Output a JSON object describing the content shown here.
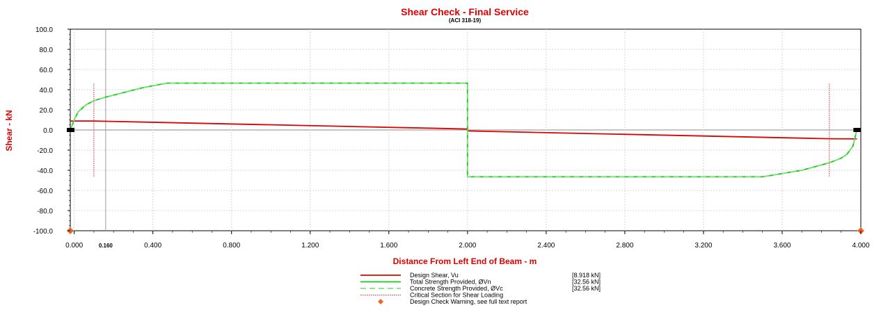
{
  "chart_data": {
    "type": "line",
    "title": "Shear Check - Final Service",
    "subtitle": "(ACI 318-19)",
    "xlabel": "Distance From Left End of Beam - m",
    "ylabel": "Shear - kN",
    "xlim": [
      -0.02,
      4.0
    ],
    "ylim": [
      -100,
      100
    ],
    "grid": true,
    "y_ticks": [
      100,
      80,
      60,
      40,
      20,
      0,
      -20,
      -40,
      -60,
      -80,
      -100
    ],
    "y_tick_labels": [
      "100.0",
      "80.0",
      "60.0",
      "40.0",
      "20.0",
      "0.0",
      "-20.0",
      "-40.0",
      "-60.0",
      "-80.0",
      "-100.0"
    ],
    "x_ticks": [
      0.0,
      0.4,
      0.8,
      1.2,
      1.6,
      2.0,
      2.4,
      2.8,
      3.2,
      3.6,
      4.0
    ],
    "x_tick_labels": [
      "0.000",
      "0.400",
      "0.800",
      "1.200",
      "1.600",
      "2.000",
      "2.400",
      "2.800",
      "3.200",
      "3.600",
      "4.000"
    ],
    "marked_x": {
      "value": 0.16,
      "label": "0.160"
    },
    "series": [
      {
        "name": "Design Shear, Vu",
        "legend_value": "[8.918  kN]",
        "color": "#dd0000",
        "style": "solid",
        "x": [
          -0.02,
          0.1,
          0.16,
          2.0,
          2.0,
          3.84,
          3.98
        ],
        "y": [
          8.9,
          8.9,
          8.6,
          1.0,
          -1.0,
          -8.7,
          -8.9
        ]
      },
      {
        "name": "Total Strength Provided, ØVn",
        "legend_value": "[32.56  kN]",
        "color": "#11cc11",
        "style": "solid",
        "x": [
          -0.02,
          0.0,
          0.02,
          0.06,
          0.1,
          0.16,
          0.25,
          0.35,
          0.47,
          2.0,
          2.0,
          3.5,
          3.7,
          3.84,
          3.9,
          3.93,
          3.96,
          3.98
        ],
        "y": [
          0,
          10,
          18,
          25,
          29,
          32.6,
          37,
          42,
          46.5,
          46.5,
          -46.5,
          -46.5,
          -40,
          -32.6,
          -28,
          -24,
          -16,
          0
        ]
      },
      {
        "name": "Concrete Strength Provided, ØVc",
        "legend_value": "[32.56  kN]",
        "color": "#88dd88",
        "style": "dashed",
        "x": [
          -0.02,
          0.0,
          0.02,
          0.06,
          0.1,
          0.16,
          0.25,
          0.35,
          0.47,
          2.0,
          2.0,
          3.5,
          3.7,
          3.84,
          3.9,
          3.93,
          3.96,
          3.98
        ],
        "y": [
          0,
          10,
          18,
          25,
          29,
          32.6,
          37,
          42,
          46.5,
          46.5,
          -46.5,
          -46.5,
          -40,
          -32.6,
          -28,
          -24,
          -16,
          0
        ]
      },
      {
        "name": "Critical Section for Shear Loading",
        "legend_value": "",
        "color": "#cc2222",
        "style": "dotted",
        "x_positions": [
          0.1,
          3.84
        ],
        "y_range": [
          -47,
          46
        ]
      },
      {
        "name": "Design Check Warning, see full text report",
        "legend_value": "",
        "color": "#ee6622",
        "style": "diamond-marker",
        "points": [
          [
            -0.02,
            -100
          ],
          [
            4.0,
            -100
          ]
        ]
      }
    ],
    "supports": [
      -0.02,
      3.98
    ]
  }
}
